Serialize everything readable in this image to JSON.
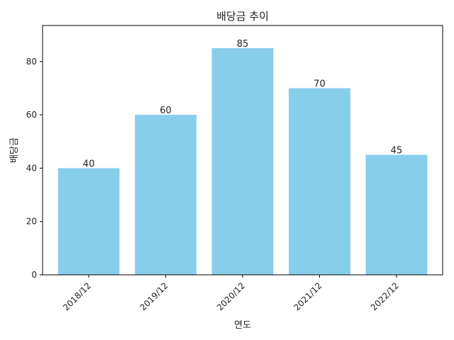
{
  "chart_data": {
    "type": "bar",
    "title": "배당금 추이",
    "xlabel": "연도",
    "ylabel": "배당금",
    "categories": [
      "2018/12",
      "2019/12",
      "2020/12",
      "2021/12",
      "2022/12"
    ],
    "values": [
      40,
      60,
      85,
      70,
      45
    ],
    "data_labels": [
      "40",
      "60",
      "85",
      "70",
      "45"
    ],
    "ylim": [
      0,
      93.5
    ],
    "yticks": [
      0,
      20,
      40,
      60,
      80
    ],
    "ytick_labels": [
      "0",
      "20",
      "40",
      "60",
      "80"
    ],
    "grid": false,
    "bar_color": "#87CEEB",
    "axis_color": "#000000",
    "xtick_rotation": "45deg"
  }
}
